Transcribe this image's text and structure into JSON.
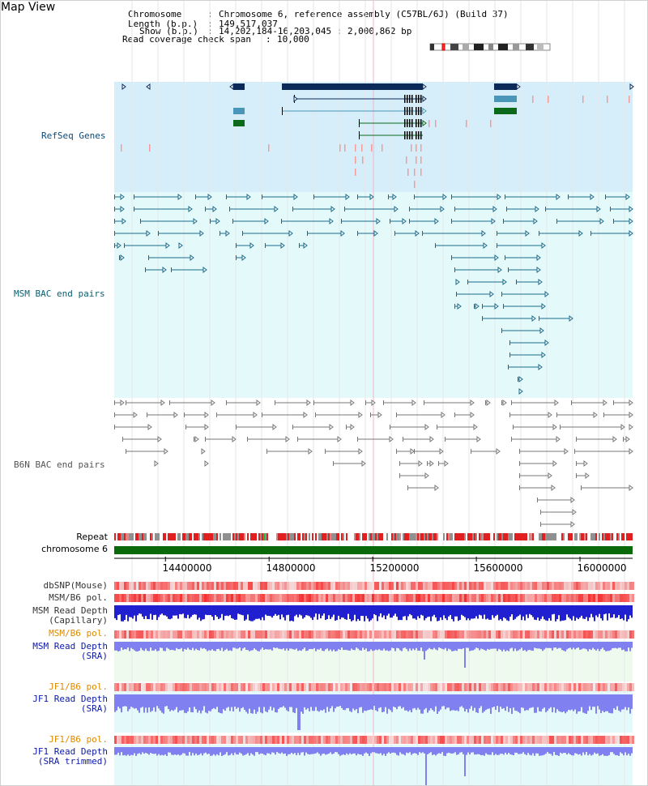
{
  "view": {
    "title": "Map View"
  },
  "header": {
    "chromosome_label": "Chromosome",
    "chromosome_value": "Chromosome 6, reference assembly (C57BL/6J) (Build 37)",
    "length_label": "Length (b.p.)",
    "length_value": "149,517,037",
    "show_label": "Show (b.p.)",
    "show_value": "14,202,184-16,203,045 : 2,000,862 bp",
    "coverage_label": "Read coverage check span",
    "coverage_value": "10,000"
  },
  "tracks": {
    "refseq": "RefSeq Genes",
    "msm_bac": "MSM BAC end pairs",
    "b6n_bac": "B6N BAC end pairs",
    "repeat": "Repeat",
    "chromosome": "chromosome 6"
  },
  "axis": {
    "ticks": [
      "14400000",
      "14800000",
      "15200000",
      "15600000",
      "16000000"
    ],
    "tick_values": [
      14400000,
      14800000,
      15200000,
      15600000,
      16000000
    ],
    "range": [
      14202184,
      16203045
    ]
  },
  "lower_tracks": {
    "dbsnp": "dbSNP(Mouse)",
    "msm_b6_pol_1": "MSM/B6 pol.",
    "msm_read_depth_cap_1": "MSM Read Depth",
    "msm_read_depth_cap_2": "(Capillary)",
    "msm_b6_pol_2": "MSM/B6 pol.",
    "msm_read_depth_sra_1": "MSM Read Depth",
    "msm_read_depth_sra_2": "(SRA)",
    "jf1_b6_pol_1": "JF1/B6 pol.",
    "jf1_read_depth_sra_1": "JF1 Read Depth",
    "jf1_read_depth_sra_2": "(SRA)",
    "jf1_b6_pol_2": "JF1/B6 pol.",
    "jf1_read_depth_trim_1": "JF1 Read Depth",
    "jf1_read_depth_trim_2": "(SRA trimmed)"
  },
  "colors": {
    "refseq_bg": "#d6eefa",
    "bac_bg": "#e4fafa",
    "depth_bg": "#eefaee",
    "navy_gene": "#0b2a5a",
    "mid_gene": "#4a96b8",
    "green_gene": "#0a6a1a",
    "msm_line": "#1a6a8a",
    "b6n_line": "#777777",
    "chrom": "#0a6a0a",
    "repeat_red": "#e02020",
    "depth_blue": "#1a1ae0",
    "depth_light": "#8080f0",
    "snp_pink": "#f49a9a"
  }
}
